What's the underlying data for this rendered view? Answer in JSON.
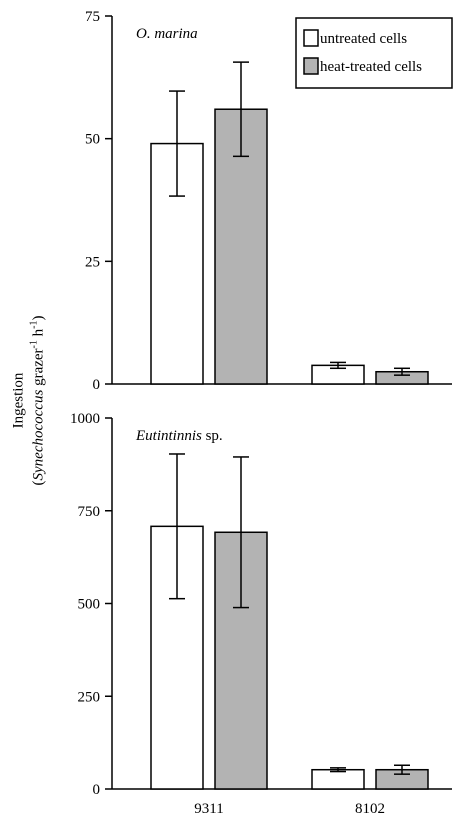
{
  "ylabel": {
    "line1": "Ingestion",
    "line2_italic": "Synechococcus",
    "line2_rest": " grazer",
    "line2_sup1": "-1",
    "line2_h": " h",
    "line2_sup2": "-1",
    "line2_close": ")",
    "line2_open": "("
  },
  "chart_data": [
    {
      "type": "bar",
      "panel_label": "O. marina",
      "categories": [
        "9311",
        "8102"
      ],
      "series": [
        {
          "name": "untreated cells",
          "color": "#ffffff",
          "values": [
            49,
            3.8
          ],
          "errors": [
            10.7,
            0.6
          ]
        },
        {
          "name": "heat-treated cells",
          "color": "#b3b3b3",
          "values": [
            56,
            2.5
          ],
          "errors": [
            9.6,
            0.7
          ]
        }
      ],
      "ylim": [
        0,
        75
      ],
      "yticks": [
        "0",
        "25",
        "50",
        "75"
      ],
      "legend": "top-right",
      "show_xticklabels": false
    },
    {
      "type": "bar",
      "panel_label": "Eutintinnis",
      "panel_label_suffix": " sp.",
      "categories": [
        "9311",
        "8102"
      ],
      "series": [
        {
          "name": "untreated cells",
          "color": "#ffffff",
          "values": [
            708,
            52
          ],
          "errors": [
            195,
            5
          ]
        },
        {
          "name": "heat-treated cells",
          "color": "#b3b3b3",
          "values": [
            692,
            52
          ],
          "errors": [
            203,
            12
          ]
        }
      ],
      "ylim": [
        0,
        1000
      ],
      "yticks": [
        "0",
        "250",
        "500",
        "750",
        "1000"
      ],
      "legend": "none",
      "show_xticklabels": true
    }
  ]
}
